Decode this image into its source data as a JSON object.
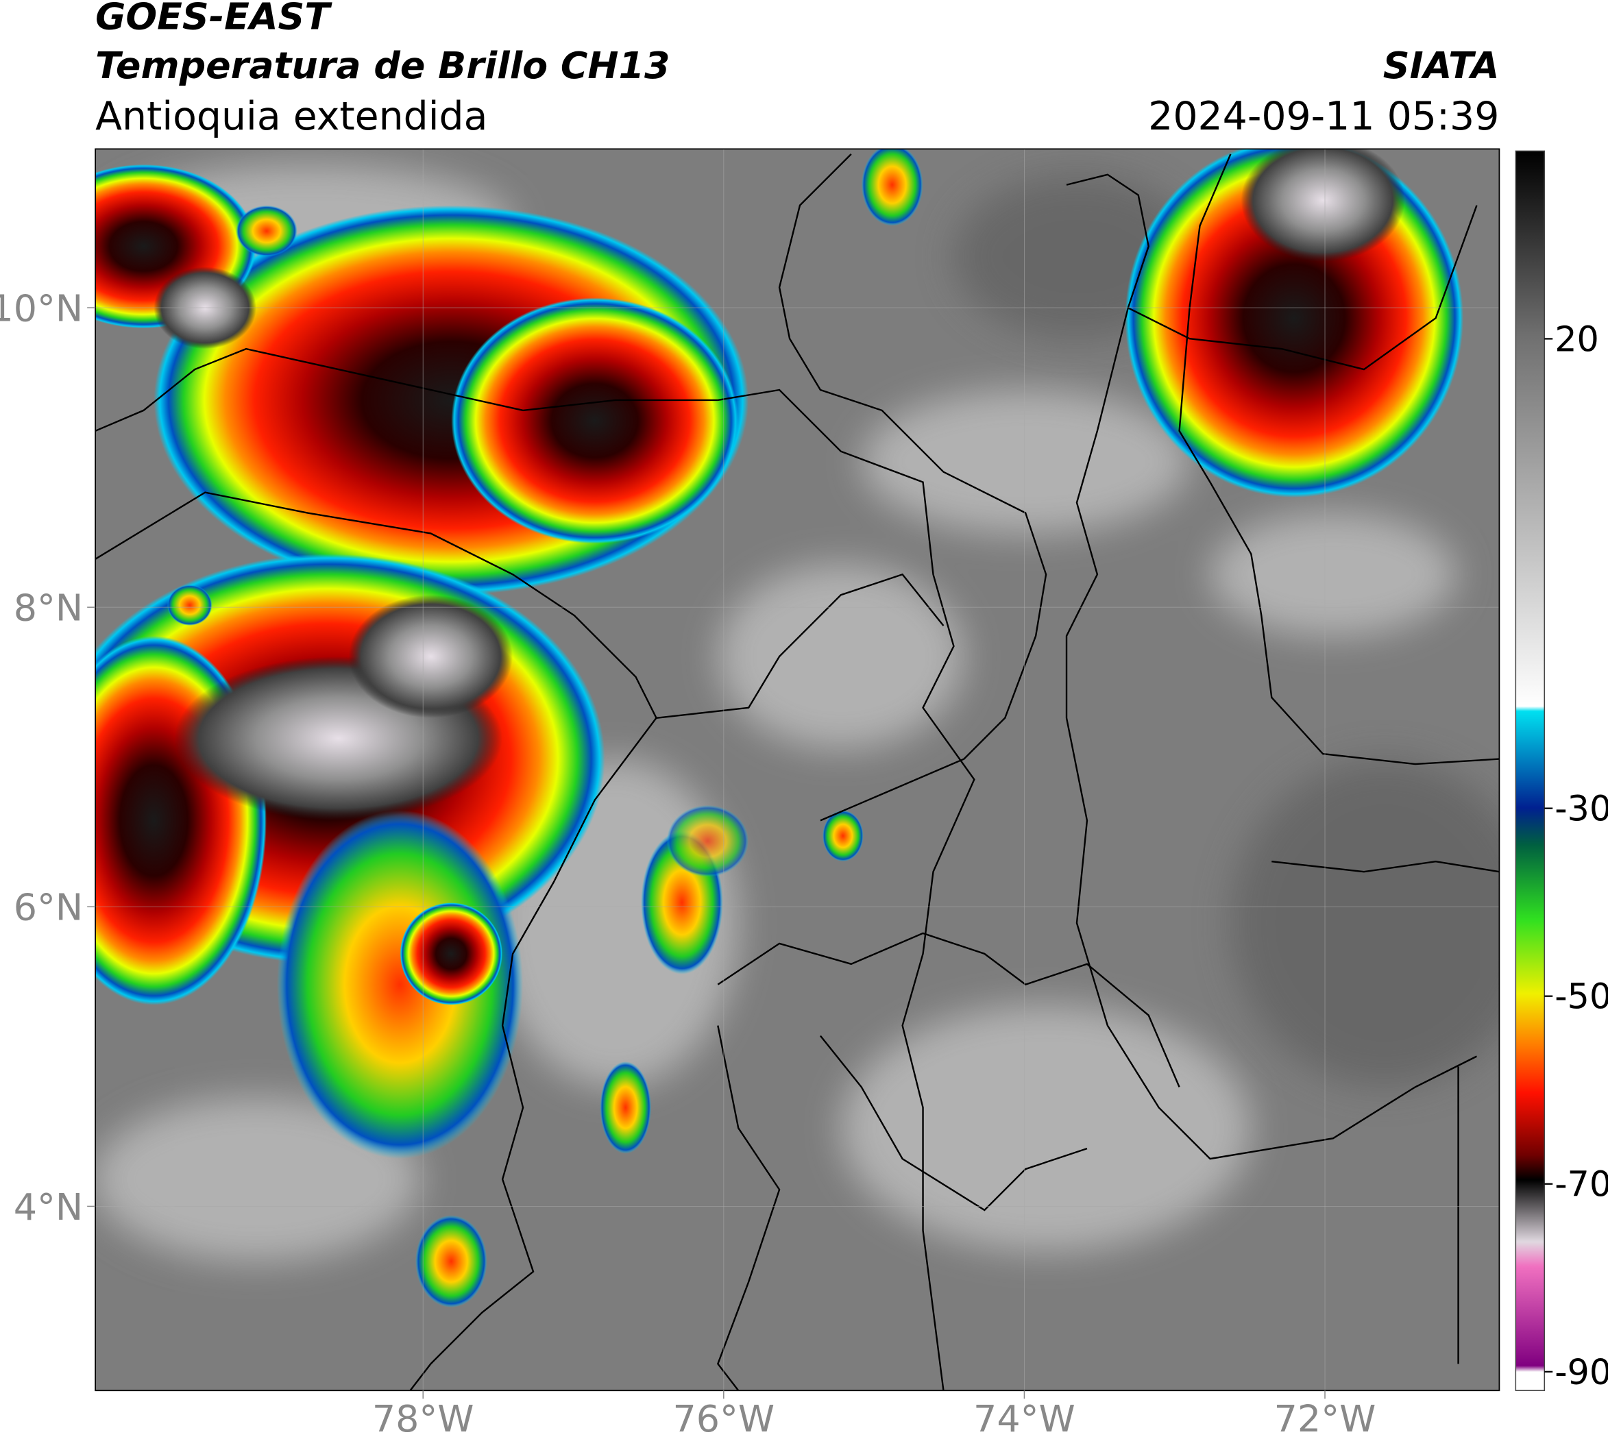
{
  "header": {
    "satellite": "GOES-EAST",
    "product": "Temperatura de Brillo CH13",
    "region": "Antioquia extendida",
    "source": "SIATA",
    "datetime": "2024-09-11 05:39"
  },
  "map": {
    "xlim": [
      -80.18,
      -70.84
    ],
    "ylim": [
      2.77,
      11.06
    ],
    "xticks": [
      {
        "value": -78,
        "label": "78°W"
      },
      {
        "value": -76,
        "label": "76°W"
      },
      {
        "value": -74,
        "label": "74°W"
      },
      {
        "value": -72,
        "label": "72°W"
      }
    ],
    "yticks": [
      {
        "value": 4,
        "label": "4°N"
      },
      {
        "value": 6,
        "label": "6°N"
      },
      {
        "value": 8,
        "label": "8°N"
      },
      {
        "value": 10,
        "label": "10°N"
      }
    ]
  },
  "colorbar": {
    "lim": [
      -92,
      40
    ],
    "ticks": [
      -90,
      -70,
      -50,
      -30,
      20
    ]
  }
}
